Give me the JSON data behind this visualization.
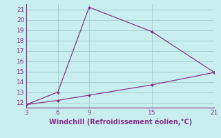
{
  "line1_x": [
    3,
    6,
    9,
    15,
    21
  ],
  "line1_y": [
    11.8,
    13.0,
    21.2,
    18.85,
    14.9
  ],
  "line2_x": [
    3,
    6,
    9,
    15,
    21
  ],
  "line2_y": [
    11.8,
    12.2,
    12.7,
    13.7,
    14.9
  ],
  "line_color": "#883388",
  "bg_color": "#c8eef0",
  "grid_color": "#a0ccc8",
  "xlabel": "Windchill (Refroidissement éolien,°C)",
  "xlabel_color": "#883388",
  "tick_color": "#883388",
  "spine_color": "#883388",
  "xlim": [
    3,
    21
  ],
  "ylim": [
    11.5,
    21.5
  ],
  "xticks": [
    3,
    6,
    9,
    15,
    21
  ],
  "yticks": [
    12,
    13,
    14,
    15,
    16,
    17,
    18,
    19,
    20,
    21
  ],
  "tick_fontsize": 6.5,
  "xlabel_fontsize": 7.0
}
